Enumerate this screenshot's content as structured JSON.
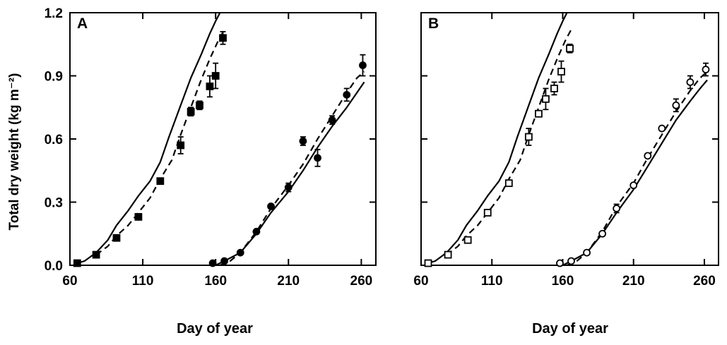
{
  "ylabel": "Total dry weight (kg m⁻²)",
  "chart_data": [
    {
      "panel": "A",
      "type": "scatter",
      "xlabel": "Day of year",
      "xlim": [
        60,
        270
      ],
      "ylim": [
        0,
        1.2
      ],
      "xticks": [
        "60",
        "110",
        "160",
        "210",
        "260"
      ],
      "yticks": [
        "0.0",
        "0.3",
        "0.6",
        "0.9",
        "1.2"
      ],
      "marker": "filled",
      "observed": [
        {
          "group": "early",
          "marker": "square",
          "points": [
            {
              "x": 65,
              "y": 0.01,
              "err": 0
            },
            {
              "x": 78,
              "y": 0.05,
              "err": 0
            },
            {
              "x": 92,
              "y": 0.13,
              "err": 0
            },
            {
              "x": 107,
              "y": 0.23,
              "err": 0.01
            },
            {
              "x": 122,
              "y": 0.4,
              "err": 0.01
            },
            {
              "x": 136,
              "y": 0.57,
              "err": 0.04
            },
            {
              "x": 143,
              "y": 0.73,
              "err": 0.02
            },
            {
              "x": 149,
              "y": 0.76,
              "err": 0.02
            },
            {
              "x": 156,
              "y": 0.85,
              "err": 0.05
            },
            {
              "x": 160,
              "y": 0.9,
              "err": 0.06
            },
            {
              "x": 165,
              "y": 1.08,
              "err": 0.03
            }
          ]
        },
        {
          "group": "late",
          "marker": "circle",
          "points": [
            {
              "x": 158,
              "y": 0.01,
              "err": 0
            },
            {
              "x": 166,
              "y": 0.02,
              "err": 0
            },
            {
              "x": 177,
              "y": 0.06,
              "err": 0
            },
            {
              "x": 188,
              "y": 0.16,
              "err": 0
            },
            {
              "x": 198,
              "y": 0.28,
              "err": 0
            },
            {
              "x": 210,
              "y": 0.37,
              "err": 0.02
            },
            {
              "x": 220,
              "y": 0.59,
              "err": 0.02
            },
            {
              "x": 230,
              "y": 0.51,
              "err": 0.04
            },
            {
              "x": 240,
              "y": 0.69,
              "err": 0.02
            },
            {
              "x": 250,
              "y": 0.81,
              "err": 0.03
            },
            {
              "x": 261,
              "y": 0.95,
              "err": 0.05
            }
          ]
        }
      ],
      "simulated": [
        {
          "group": "early",
          "style": "solid",
          "x": [
            65,
            70,
            78,
            86,
            92,
            100,
            107,
            115,
            122,
            128,
            136,
            143,
            150,
            156,
            160,
            163
          ],
          "y": [
            0.01,
            0.02,
            0.06,
            0.12,
            0.19,
            0.26,
            0.33,
            0.4,
            0.49,
            0.61,
            0.76,
            0.89,
            1.0,
            1.1,
            1.16,
            1.2
          ]
        },
        {
          "group": "early",
          "style": "dashed",
          "x": [
            78,
            86,
            92,
            100,
            107,
            115,
            122,
            130,
            136,
            143,
            150,
            156,
            162,
            166
          ],
          "y": [
            0.05,
            0.09,
            0.14,
            0.19,
            0.25,
            0.32,
            0.41,
            0.5,
            0.62,
            0.75,
            0.88,
            0.98,
            1.07,
            1.12
          ]
        },
        {
          "group": "late",
          "style": "solid",
          "x": [
            160,
            166,
            177,
            188,
            198,
            210,
            220,
            230,
            240,
            250,
            257,
            262
          ],
          "y": [
            0.0,
            0.02,
            0.06,
            0.15,
            0.25,
            0.35,
            0.45,
            0.56,
            0.66,
            0.75,
            0.82,
            0.87
          ]
        },
        {
          "group": "late",
          "style": "dashed",
          "x": [
            163,
            170,
            177,
            188,
            198,
            210,
            220,
            230,
            240,
            250,
            257,
            262
          ],
          "y": [
            0.0,
            0.02,
            0.06,
            0.16,
            0.27,
            0.38,
            0.48,
            0.6,
            0.71,
            0.82,
            0.89,
            0.92
          ]
        }
      ]
    },
    {
      "panel": "B",
      "type": "scatter",
      "xlabel": "Day of year",
      "xlim": [
        60,
        270
      ],
      "ylim": [
        0,
        1.2
      ],
      "xticks": [
        "60",
        "110",
        "160",
        "210",
        "260"
      ],
      "yticks": [],
      "marker": "open",
      "observed": [
        {
          "group": "early",
          "marker": "square",
          "points": [
            {
              "x": 65,
              "y": 0.01,
              "err": 0
            },
            {
              "x": 79,
              "y": 0.05,
              "err": 0
            },
            {
              "x": 93,
              "y": 0.12,
              "err": 0
            },
            {
              "x": 107,
              "y": 0.25,
              "err": 0.01
            },
            {
              "x": 122,
              "y": 0.39,
              "err": 0.01
            },
            {
              "x": 136,
              "y": 0.61,
              "err": 0.04
            },
            {
              "x": 143,
              "y": 0.72,
              "err": 0
            },
            {
              "x": 148,
              "y": 0.79,
              "err": 0.05
            },
            {
              "x": 154,
              "y": 0.84,
              "err": 0.03
            },
            {
              "x": 159,
              "y": 0.92,
              "err": 0.05
            },
            {
              "x": 165,
              "y": 1.03,
              "err": 0.02
            }
          ]
        },
        {
          "group": "late",
          "marker": "circle",
          "points": [
            {
              "x": 158,
              "y": 0.01,
              "err": 0
            },
            {
              "x": 166,
              "y": 0.02,
              "err": 0
            },
            {
              "x": 177,
              "y": 0.06,
              "err": 0
            },
            {
              "x": 188,
              "y": 0.15,
              "err": 0
            },
            {
              "x": 198,
              "y": 0.27,
              "err": 0.02
            },
            {
              "x": 210,
              "y": 0.38,
              "err": 0
            },
            {
              "x": 220,
              "y": 0.52,
              "err": 0
            },
            {
              "x": 230,
              "y": 0.65,
              "err": 0
            },
            {
              "x": 240,
              "y": 0.76,
              "err": 0.03
            },
            {
              "x": 250,
              "y": 0.87,
              "err": 0.03
            },
            {
              "x": 261,
              "y": 0.93,
              "err": 0.03
            }
          ]
        }
      ],
      "simulated": [
        {
          "group": "early",
          "style": "solid",
          "x": [
            65,
            70,
            78,
            86,
            92,
            100,
            107,
            115,
            122,
            128,
            136,
            143,
            150,
            156,
            160,
            163
          ],
          "y": [
            0.01,
            0.02,
            0.06,
            0.12,
            0.19,
            0.26,
            0.33,
            0.4,
            0.49,
            0.61,
            0.76,
            0.89,
            1.0,
            1.1,
            1.16,
            1.2
          ]
        },
        {
          "group": "early",
          "style": "dashed",
          "x": [
            78,
            86,
            92,
            100,
            107,
            115,
            122,
            130,
            136,
            143,
            150,
            156,
            162,
            166
          ],
          "y": [
            0.05,
            0.09,
            0.14,
            0.19,
            0.25,
            0.32,
            0.41,
            0.5,
            0.62,
            0.75,
            0.88,
            0.98,
            1.07,
            1.12
          ]
        },
        {
          "group": "late",
          "style": "solid",
          "x": [
            160,
            166,
            177,
            188,
            198,
            210,
            220,
            230,
            240,
            250,
            257,
            262
          ],
          "y": [
            0.0,
            0.02,
            0.06,
            0.15,
            0.25,
            0.36,
            0.47,
            0.58,
            0.69,
            0.78,
            0.84,
            0.88
          ]
        },
        {
          "group": "late",
          "style": "dashed",
          "x": [
            163,
            170,
            177,
            188,
            198,
            210,
            220,
            230,
            240,
            250,
            257,
            262
          ],
          "y": [
            0.0,
            0.02,
            0.06,
            0.16,
            0.28,
            0.39,
            0.51,
            0.62,
            0.73,
            0.83,
            0.89,
            0.92
          ]
        }
      ]
    }
  ]
}
